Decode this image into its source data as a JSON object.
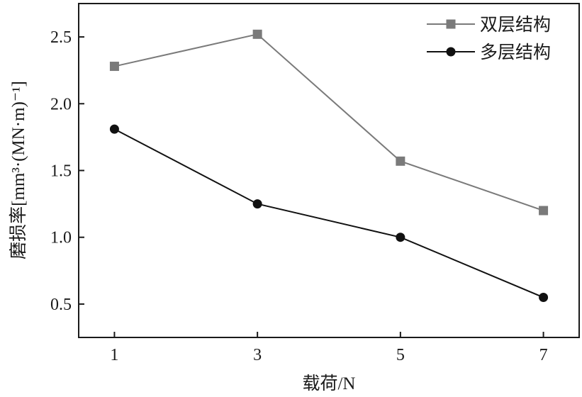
{
  "chart_data": {
    "type": "line",
    "title": "",
    "xlabel": "载荷/N",
    "ylabel": "磨损率[mm³·(MN·m)⁻¹]",
    "x": [
      1,
      3,
      5,
      7
    ],
    "xlim": [
      0.5,
      7.5
    ],
    "ylim": [
      0.25,
      2.75
    ],
    "xticks": [
      "1",
      "3",
      "5",
      "7"
    ],
    "yticks": [
      "0.5",
      "1.0",
      "1.5",
      "2.0",
      "2.5"
    ],
    "grid": false,
    "legend_position": "top-right",
    "series": [
      {
        "name": "双层结构",
        "values": [
          2.28,
          2.52,
          1.57,
          1.2
        ],
        "marker": "square",
        "color": "#7a7a7a"
      },
      {
        "name": "多层结构",
        "values": [
          1.81,
          1.25,
          1.0,
          0.55
        ],
        "marker": "circle",
        "color": "#111111"
      }
    ]
  }
}
